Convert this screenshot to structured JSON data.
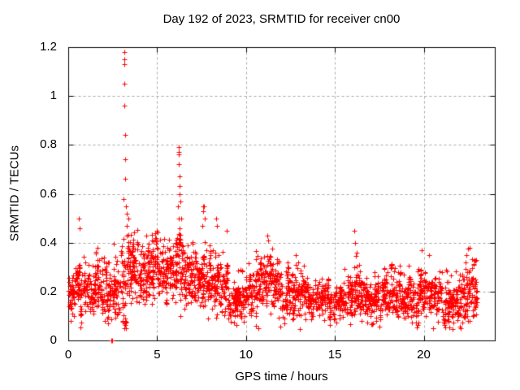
{
  "figure": {
    "background": "#ffffff",
    "border_color": "#000000",
    "text_color": "#000000"
  },
  "chart_data": {
    "type": "scatter",
    "title": "Day 192 of 2023, SRMTID for receiver cn00",
    "xlabel": "GPS time / hours",
    "ylabel": "SRMTID / TECUs",
    "xlim": [
      0,
      24
    ],
    "ylim": [
      0,
      1.2
    ],
    "xticks": [
      0,
      5,
      10,
      15,
      20
    ],
    "xtick_labels": [
      "0",
      "5",
      "10",
      "15",
      "20"
    ],
    "yticks": [
      0,
      0.2,
      0.4,
      0.6,
      0.8,
      1,
      1.2
    ],
    "ytick_labels": [
      "0",
      "0.2",
      "0.4",
      "0.6",
      "0.8",
      "1",
      "1.2"
    ],
    "grid": true,
    "grid_color": "#a9a9a9",
    "marker": "plus",
    "marker_color": "#ff0000",
    "series_name": "SRMTID",
    "seed": 1337,
    "band_bins": {
      "comment": "dense scatter band summarized per 0.5 h bin: [start_hour, median_TECU, sigma_TECU, n_points]",
      "bin_width": 0.5,
      "stats": [
        [
          0.0,
          0.21,
          0.05,
          55
        ],
        [
          0.5,
          0.22,
          0.06,
          60
        ],
        [
          1.0,
          0.2,
          0.05,
          55
        ],
        [
          1.5,
          0.23,
          0.06,
          60
        ],
        [
          2.0,
          0.2,
          0.06,
          55
        ],
        [
          2.5,
          0.23,
          0.06,
          55
        ],
        [
          3.0,
          0.28,
          0.09,
          70
        ],
        [
          3.5,
          0.28,
          0.07,
          65
        ],
        [
          4.0,
          0.26,
          0.07,
          60
        ],
        [
          4.5,
          0.29,
          0.07,
          65
        ],
        [
          5.0,
          0.3,
          0.06,
          60
        ],
        [
          5.5,
          0.27,
          0.06,
          60
        ],
        [
          6.0,
          0.31,
          0.08,
          70
        ],
        [
          6.5,
          0.28,
          0.07,
          60
        ],
        [
          7.0,
          0.26,
          0.06,
          60
        ],
        [
          7.5,
          0.28,
          0.07,
          65
        ],
        [
          8.0,
          0.25,
          0.06,
          60
        ],
        [
          8.5,
          0.22,
          0.06,
          55
        ],
        [
          9.0,
          0.16,
          0.05,
          55
        ],
        [
          9.5,
          0.15,
          0.05,
          55
        ],
        [
          10.0,
          0.2,
          0.05,
          55
        ],
        [
          10.5,
          0.22,
          0.06,
          60
        ],
        [
          11.0,
          0.24,
          0.06,
          60
        ],
        [
          11.5,
          0.22,
          0.06,
          55
        ],
        [
          12.0,
          0.18,
          0.05,
          55
        ],
        [
          12.5,
          0.2,
          0.06,
          55
        ],
        [
          13.0,
          0.18,
          0.05,
          55
        ],
        [
          13.5,
          0.16,
          0.04,
          50
        ],
        [
          14.0,
          0.17,
          0.04,
          55
        ],
        [
          14.5,
          0.15,
          0.04,
          50
        ],
        [
          15.0,
          0.16,
          0.04,
          55
        ],
        [
          15.5,
          0.17,
          0.05,
          55
        ],
        [
          16.0,
          0.2,
          0.06,
          60
        ],
        [
          16.5,
          0.18,
          0.05,
          55
        ],
        [
          17.0,
          0.18,
          0.05,
          55
        ],
        [
          17.5,
          0.17,
          0.05,
          55
        ],
        [
          18.0,
          0.18,
          0.05,
          55
        ],
        [
          18.5,
          0.17,
          0.05,
          55
        ],
        [
          19.0,
          0.18,
          0.05,
          55
        ],
        [
          19.5,
          0.2,
          0.06,
          60
        ],
        [
          20.0,
          0.18,
          0.05,
          55
        ],
        [
          20.5,
          0.17,
          0.05,
          55
        ],
        [
          21.0,
          0.16,
          0.05,
          55
        ],
        [
          21.5,
          0.15,
          0.05,
          55
        ],
        [
          22.0,
          0.18,
          0.06,
          60
        ],
        [
          22.5,
          0.22,
          0.06,
          60
        ]
      ]
    },
    "outliers": [
      [
        3.15,
        1.18
      ],
      [
        3.15,
        1.15
      ],
      [
        3.15,
        1.13
      ],
      [
        3.17,
        1.05
      ],
      [
        3.17,
        0.96
      ],
      [
        3.2,
        0.84
      ],
      [
        3.2,
        0.74
      ],
      [
        3.22,
        0.66
      ],
      [
        3.1,
        0.58
      ],
      [
        3.25,
        0.55
      ],
      [
        3.3,
        0.52
      ],
      [
        3.28,
        0.47
      ],
      [
        6.2,
        0.79
      ],
      [
        6.2,
        0.77
      ],
      [
        6.2,
        0.76
      ],
      [
        6.22,
        0.72
      ],
      [
        6.25,
        0.67
      ],
      [
        6.25,
        0.63
      ],
      [
        6.28,
        0.6
      ],
      [
        6.3,
        0.57
      ],
      [
        6.15,
        0.55
      ],
      [
        6.35,
        0.5
      ],
      [
        7.6,
        0.55
      ],
      [
        7.65,
        0.55
      ],
      [
        7.6,
        0.53
      ],
      [
        7.7,
        0.5
      ],
      [
        7.55,
        0.47
      ],
      [
        0.6,
        0.5
      ],
      [
        0.62,
        0.46
      ],
      [
        2.42,
        0.0
      ],
      [
        2.48,
        0.0
      ],
      [
        8.3,
        0.5
      ],
      [
        8.35,
        0.47
      ],
      [
        8.9,
        0.45
      ],
      [
        11.2,
        0.43
      ],
      [
        11.25,
        0.41
      ],
      [
        12.8,
        0.35
      ],
      [
        16.1,
        0.45
      ],
      [
        16.12,
        0.4
      ],
      [
        5.0,
        0.45
      ],
      [
        4.9,
        0.44
      ],
      [
        4.4,
        0.43
      ],
      [
        19.9,
        0.37
      ],
      [
        20.3,
        0.35
      ],
      [
        22.4,
        0.35
      ],
      [
        22.6,
        0.38
      ],
      [
        22.85,
        0.33
      ]
    ]
  }
}
